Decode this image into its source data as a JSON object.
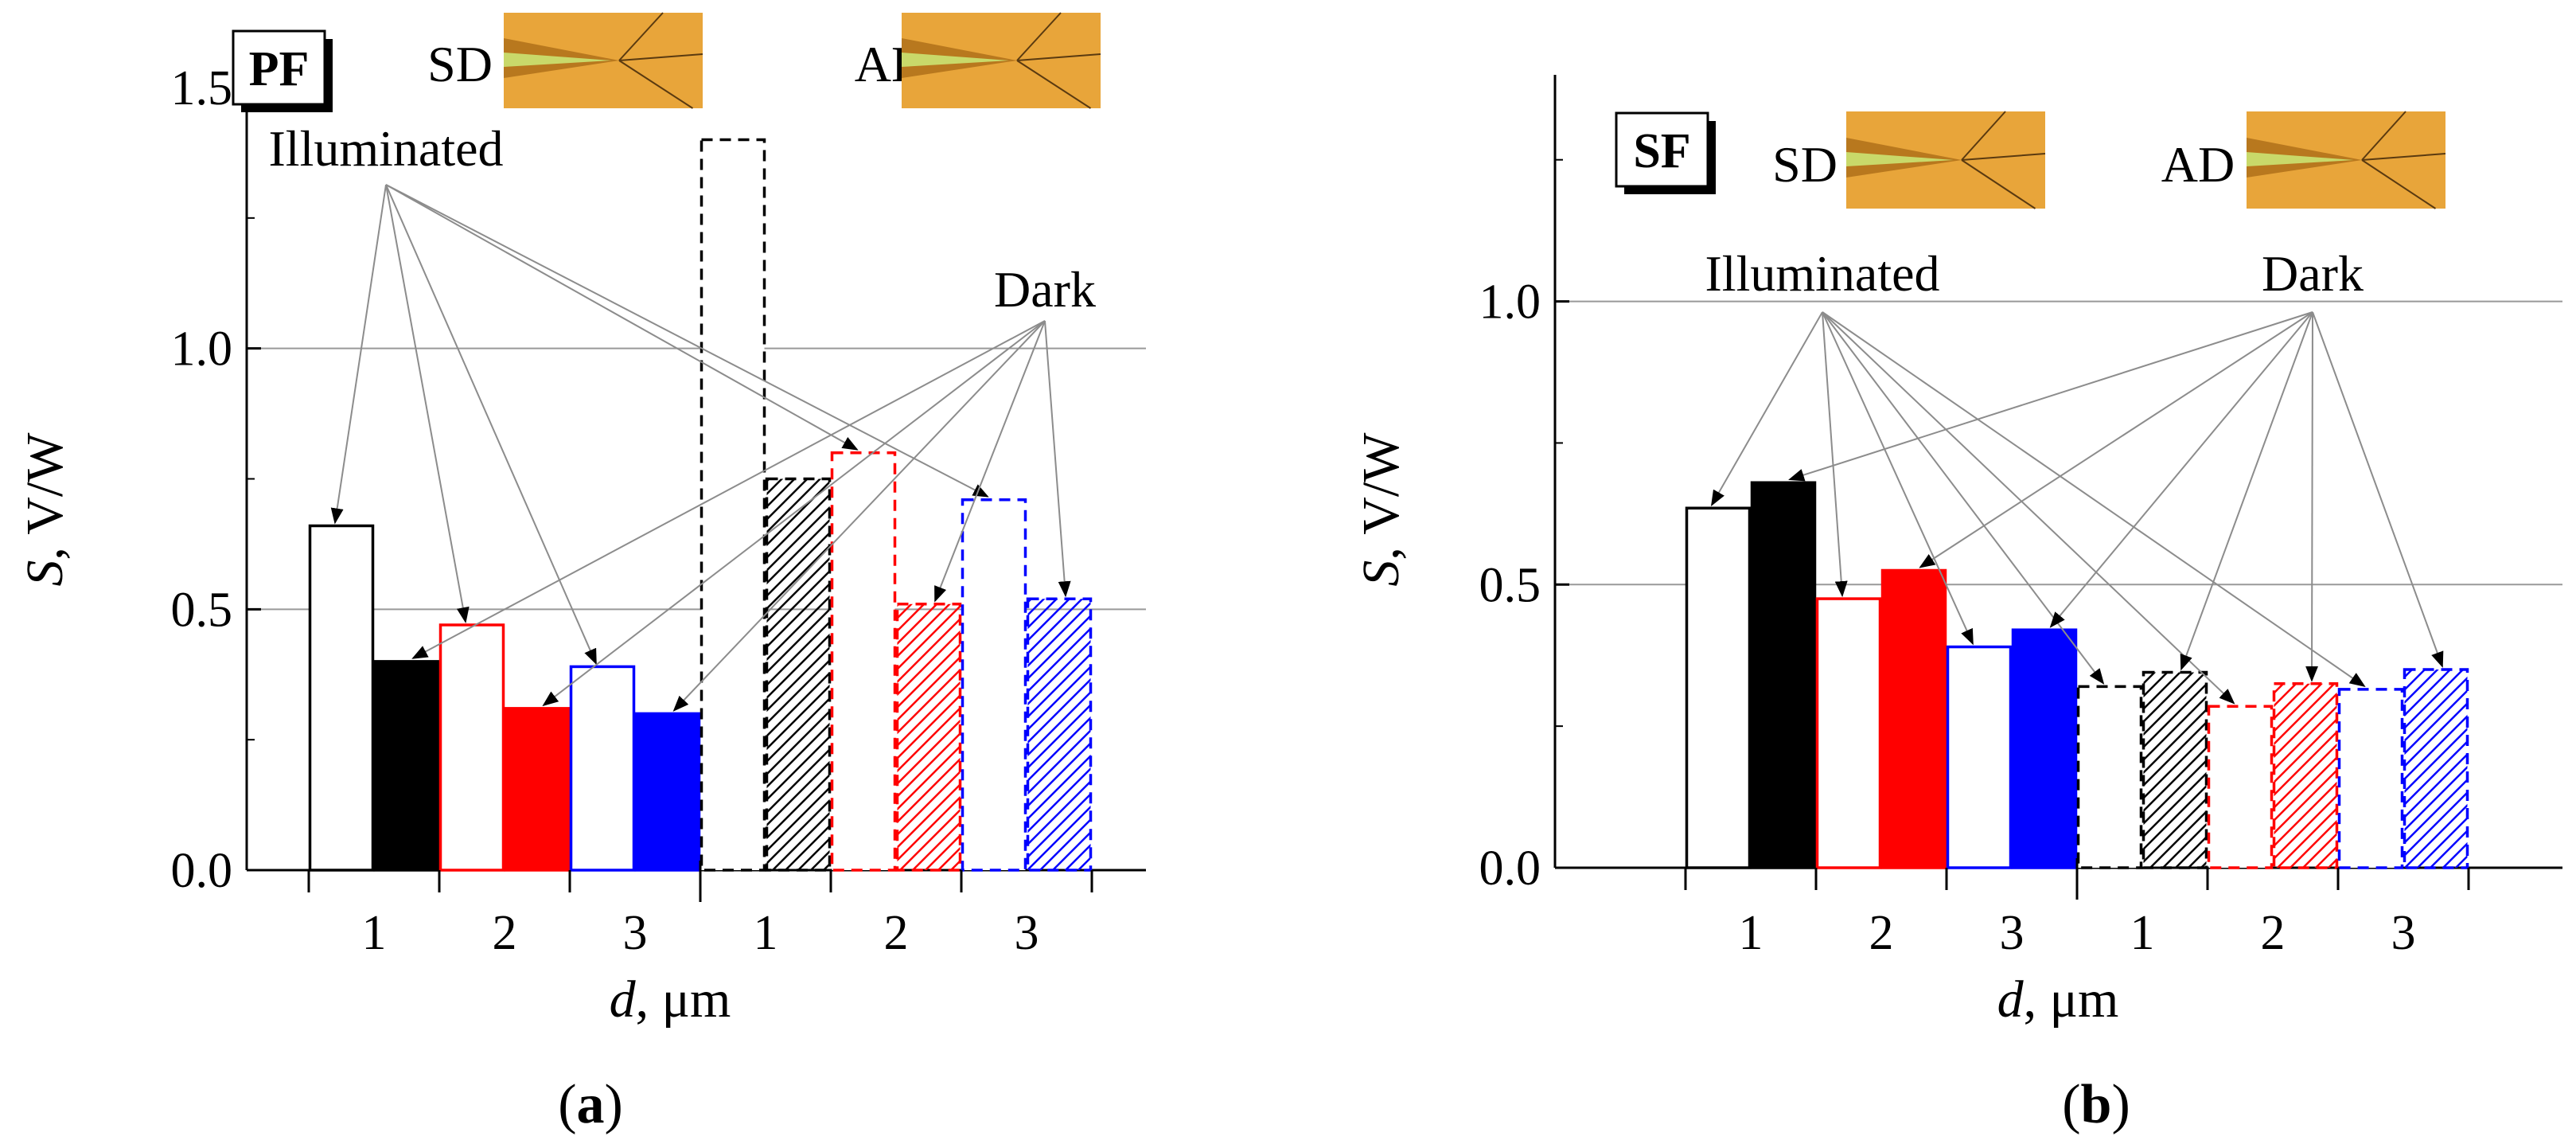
{
  "chart_data": [
    {
      "type": "bar",
      "panel": "(a)",
      "badge": "PF",
      "categories": [
        "1",
        "2",
        "3",
        "1",
        "2",
        "3"
      ],
      "group_labels": [
        "Illuminated",
        "Dark"
      ],
      "insets": [
        "SD",
        "AD"
      ],
      "bars": [
        {
          "group": "Illuminated",
          "d": "1",
          "detector": "SD",
          "value": 0.66,
          "color": "#000000",
          "style": "open"
        },
        {
          "group": "Illuminated",
          "d": "1",
          "detector": "AD",
          "value": 0.4,
          "color": "#000000",
          "style": "solid"
        },
        {
          "group": "Illuminated",
          "d": "2",
          "detector": "SD",
          "value": 0.47,
          "color": "#ff0000",
          "style": "open"
        },
        {
          "group": "Illuminated",
          "d": "2",
          "detector": "AD",
          "value": 0.31,
          "color": "#ff0000",
          "style": "solid"
        },
        {
          "group": "Illuminated",
          "d": "3",
          "detector": "SD",
          "value": 0.39,
          "color": "#0000ff",
          "style": "open"
        },
        {
          "group": "Illuminated",
          "d": "3",
          "detector": "AD",
          "value": 0.3,
          "color": "#0000ff",
          "style": "solid"
        },
        {
          "group": "Dark",
          "d": "1",
          "detector": "SD",
          "value": 1.4,
          "color": "#000000",
          "style": "dashed"
        },
        {
          "group": "Dark",
          "d": "1",
          "detector": "AD",
          "value": 0.75,
          "color": "#000000",
          "style": "hatched"
        },
        {
          "group": "Dark",
          "d": "2",
          "detector": "SD",
          "value": 0.8,
          "color": "#ff0000",
          "style": "dashed"
        },
        {
          "group": "Dark",
          "d": "2",
          "detector": "AD",
          "value": 0.51,
          "color": "#ff0000",
          "style": "hatched"
        },
        {
          "group": "Dark",
          "d": "3",
          "detector": "SD",
          "value": 0.71,
          "color": "#0000ff",
          "style": "dashed"
        },
        {
          "group": "Dark",
          "d": "3",
          "detector": "AD",
          "value": 0.52,
          "color": "#0000ff",
          "style": "hatched"
        }
      ],
      "ylim": [
        0,
        1.5
      ],
      "yticks": [
        "0.0",
        "0.5",
        "1.0",
        "1.5"
      ],
      "gridlines": [
        0.5,
        1.0
      ],
      "xlabel_var": "d",
      "xlabel_unit": ", μm",
      "ylabel_var": "S",
      "ylabel_unit": ", V/W"
    },
    {
      "type": "bar",
      "panel": "(b)",
      "badge": "SF",
      "categories": [
        "1",
        "2",
        "3",
        "1",
        "2",
        "3"
      ],
      "group_labels": [
        "Illuminated",
        "Dark"
      ],
      "insets": [
        "SD",
        "AD"
      ],
      "bars": [
        {
          "group": "Illuminated",
          "d": "1",
          "detector": "SD",
          "value": 0.635,
          "color": "#000000",
          "style": "open"
        },
        {
          "group": "Illuminated",
          "d": "1",
          "detector": "AD",
          "value": 0.68,
          "color": "#000000",
          "style": "solid"
        },
        {
          "group": "Illuminated",
          "d": "2",
          "detector": "SD",
          "value": 0.475,
          "color": "#ff0000",
          "style": "open"
        },
        {
          "group": "Illuminated",
          "d": "2",
          "detector": "AD",
          "value": 0.525,
          "color": "#ff0000",
          "style": "solid"
        },
        {
          "group": "Illuminated",
          "d": "3",
          "detector": "SD",
          "value": 0.39,
          "color": "#0000ff",
          "style": "open"
        },
        {
          "group": "Illuminated",
          "d": "3",
          "detector": "AD",
          "value": 0.42,
          "color": "#0000ff",
          "style": "solid"
        },
        {
          "group": "Dark",
          "d": "1",
          "detector": "SD",
          "value": 0.32,
          "color": "#000000",
          "style": "dashed"
        },
        {
          "group": "Dark",
          "d": "1",
          "detector": "AD",
          "value": 0.345,
          "color": "#000000",
          "style": "hatched"
        },
        {
          "group": "Dark",
          "d": "2",
          "detector": "SD",
          "value": 0.285,
          "color": "#ff0000",
          "style": "dashed"
        },
        {
          "group": "Dark",
          "d": "2",
          "detector": "AD",
          "value": 0.325,
          "color": "#ff0000",
          "style": "hatched"
        },
        {
          "group": "Dark",
          "d": "3",
          "detector": "SD",
          "value": 0.315,
          "color": "#0000ff",
          "style": "dashed"
        },
        {
          "group": "Dark",
          "d": "3",
          "detector": "AD",
          "value": 0.35,
          "color": "#0000ff",
          "style": "hatched"
        }
      ],
      "ylim": [
        0,
        1.4
      ],
      "yticks": [
        "0.0",
        "0.5",
        "1.0"
      ],
      "gridlines": [
        0.5,
        1.0
      ],
      "xlabel_var": "d",
      "xlabel_unit": ", μm",
      "ylabel_var": "S",
      "ylabel_unit": ", V/W"
    }
  ],
  "colors": {
    "black": "#000000",
    "red": "#ff0000",
    "blue": "#0000ff",
    "grid": "#999999",
    "arrow": "#8c8c8c",
    "inset_bg": "#e8a53a",
    "inset_dark": "#b8781e",
    "inset_tip": "#c9d96a"
  },
  "captions": {
    "a_letter": "a",
    "b_letter": "b"
  }
}
